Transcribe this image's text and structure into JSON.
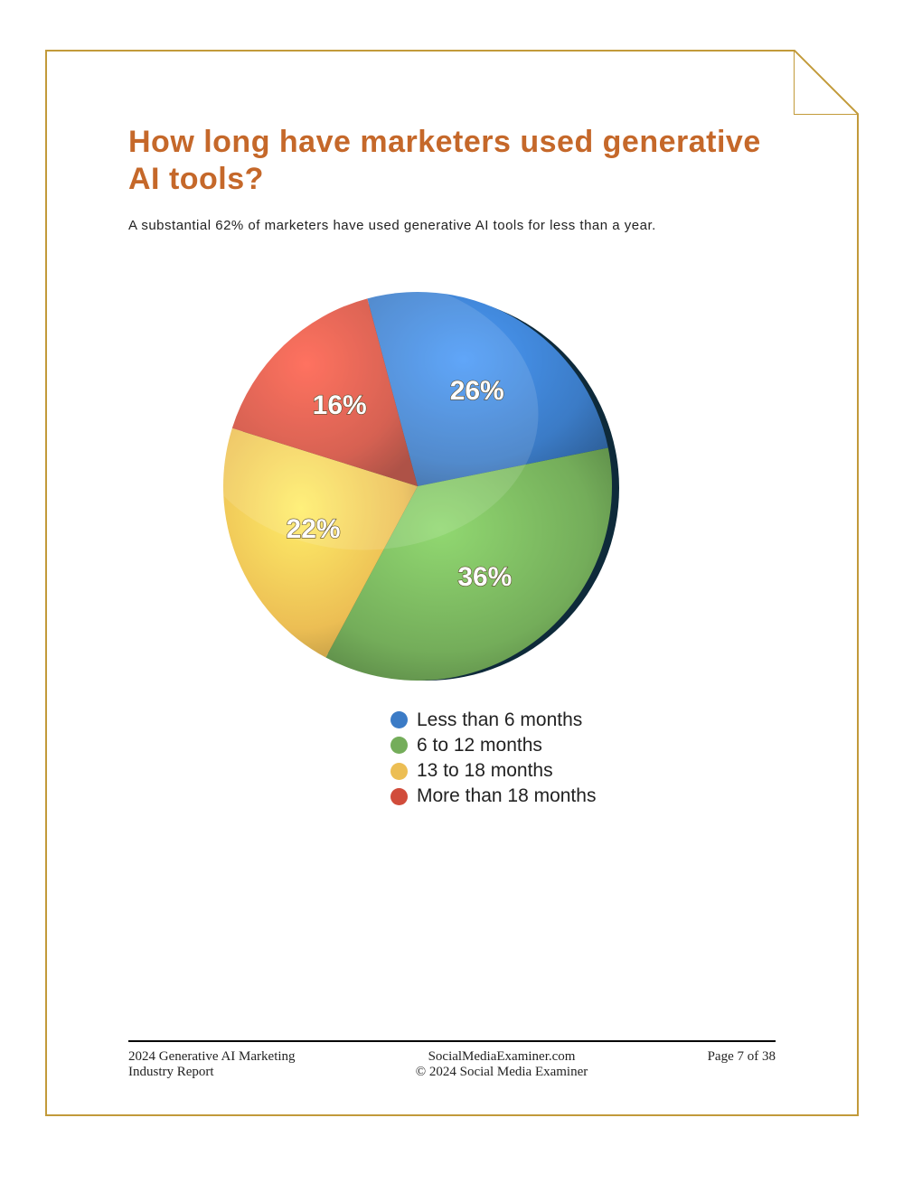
{
  "page": {
    "border_color": "#c29a3a",
    "background_color": "#ffffff"
  },
  "heading": {
    "title": "How long have marketers used generative AI tools?",
    "title_color": "#c5682a",
    "title_fontsize": 34,
    "subtitle": "A substantial 62% of marketers have used generative AI tools for less than a year."
  },
  "chart": {
    "type": "pie",
    "background_color": "#ffffff",
    "shadow_color": "#0e2a3a",
    "start_angle_deg": -15,
    "label_fontsize": 30,
    "label_color": "#ffffff",
    "slices": [
      {
        "label": "Less than 6 months",
        "value": 26,
        "percent_text": "26%",
        "color": "#3b7bc6"
      },
      {
        "label": "6 to 12 months",
        "value": 36,
        "percent_text": "36%",
        "color": "#74ad5a"
      },
      {
        "label": "13 to 18 months",
        "value": 22,
        "percent_text": "22%",
        "color": "#ecbe54"
      },
      {
        "label": "More than 18 months",
        "value": 16,
        "percent_text": "16%",
        "color": "#d14c3b"
      }
    ],
    "legend_fontsize": 21
  },
  "footer": {
    "left_line1": "2024 Generative AI Marketing",
    "left_line2": "Industry Report",
    "center_line1": "SocialMediaExaminer.com",
    "center_line2": "© 2024 Social Media Examiner",
    "right": "Page 7 of 38"
  }
}
